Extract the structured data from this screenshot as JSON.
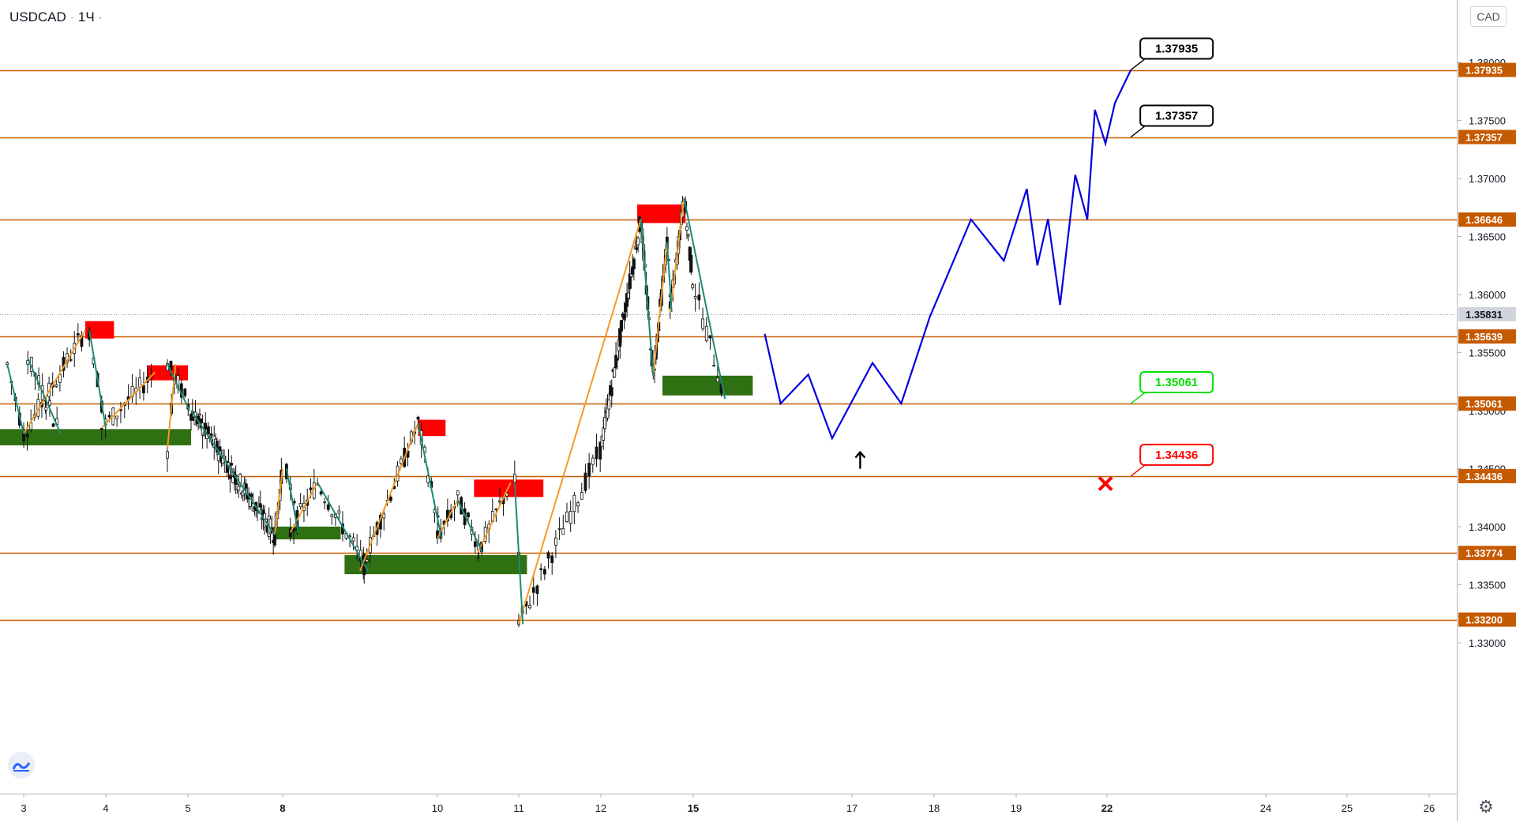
{
  "header": {
    "symbol": "USDCAD",
    "interval": "1Ч",
    "currency": "CAD"
  },
  "icons": {
    "settings": "gear-icon",
    "logo": "tradingview-logo-icon"
  },
  "colors": {
    "level": "#c55a00",
    "projection": "#0000e0",
    "supply": "#ff0000",
    "demand": "#2e7012",
    "up_wave": "#f59a23",
    "down_wave": "#1b8a7a",
    "candle": "#111111",
    "target_up": "#00e000",
    "target_down": "#ff0000"
  },
  "chart_data": {
    "type": "line",
    "title": "",
    "xlabel": "",
    "ylabel": "",
    "y_axis_ticks": [
      "1.33000",
      "1.33500",
      "1.34000",
      "1.34500",
      "1.35000",
      "1.35500",
      "1.36000",
      "1.36500",
      "1.37000",
      "1.37500",
      "1.38000"
    ],
    "ylim": [
      1.3285,
      1.3835
    ],
    "x_axis_ticks": [
      {
        "label": "3",
        "day": 3,
        "bold": false
      },
      {
        "label": "4",
        "day": 4,
        "bold": false
      },
      {
        "label": "5",
        "day": 5,
        "bold": false
      },
      {
        "label": "8",
        "day": 8,
        "bold": true
      },
      {
        "label": "10",
        "day": 10,
        "bold": false
      },
      {
        "label": "11",
        "day": 11,
        "bold": false
      },
      {
        "label": "12",
        "day": 12,
        "bold": false
      },
      {
        "label": "15",
        "day": 15,
        "bold": true
      },
      {
        "label": "17",
        "day": 17,
        "bold": false
      },
      {
        "label": "18",
        "day": 18,
        "bold": false
      },
      {
        "label": "19",
        "day": 19,
        "bold": false
      },
      {
        "label": "22",
        "day": 22,
        "bold": true
      },
      {
        "label": "24",
        "day": 24,
        "bold": false
      },
      {
        "label": "25",
        "day": 25,
        "bold": false
      },
      {
        "label": "26",
        "day": 26,
        "bold": false
      }
    ],
    "levels": [
      {
        "label": "1.37935",
        "value": 1.37935
      },
      {
        "label": "1.37357",
        "value": 1.37357
      },
      {
        "label": "1.36646",
        "value": 1.36646
      },
      {
        "label": "1.35639",
        "value": 1.35639
      },
      {
        "label": "1.35061",
        "value": 1.35061
      },
      {
        "label": "1.34436",
        "value": 1.34436
      },
      {
        "label": "1.33774",
        "value": 1.33774
      },
      {
        "label": "1.33200",
        "value": 1.332
      }
    ],
    "last_price": {
      "label": "1.35831",
      "value": 1.35831
    },
    "supply_zones": [
      {
        "x0": 3.75,
        "x1": 4.1,
        "y0": 1.35621,
        "y1": 1.35771
      },
      {
        "x0": 4.5,
        "x1": 5.0,
        "y0": 1.35261,
        "y1": 1.35391
      },
      {
        "x0": 9.75,
        "x1": 10.1,
        "y0": 1.34781,
        "y1": 1.34921
      },
      {
        "x0": 10.45,
        "x1": 11.3,
        "y0": 1.34256,
        "y1": 1.34406
      },
      {
        "x0": 13.18,
        "x1": 14.75,
        "y0": 1.36616,
        "y1": 1.36776
      }
    ],
    "demand_zones": [
      {
        "x0": 2.7,
        "x1": 5.1,
        "y0": 1.34701,
        "y1": 1.34841
      },
      {
        "x0": 7.7,
        "x1": 8.75,
        "y0": 1.33891,
        "y1": 1.34001
      },
      {
        "x0": 8.8,
        "x1": 11.1,
        "y0": 1.33591,
        "y1": 1.33756
      },
      {
        "x0": 14.0,
        "x1": 15.75,
        "y0": 1.35131,
        "y1": 1.35301
      }
    ],
    "up_wave_segments": [
      [
        [
          3.0,
          1.34801
        ],
        [
          3.75,
          1.35691
        ]
      ],
      [
        [
          3.95,
          1.34851
        ],
        [
          4.6,
          1.35331
        ]
      ],
      [
        [
          4.75,
          1.34671
        ],
        [
          4.85,
          1.35401
        ]
      ],
      [
        [
          7.75,
          1.33931
        ],
        [
          8.0,
          1.34501
        ]
      ],
      [
        [
          8.1,
          1.33951
        ],
        [
          8.45,
          1.34381
        ]
      ],
      [
        [
          9.0,
          1.33621
        ],
        [
          9.75,
          1.34891
        ]
      ],
      [
        [
          10.0,
          1.33901
        ],
        [
          10.25,
          1.34231
        ]
      ],
      [
        [
          10.5,
          1.33781
        ],
        [
          10.9,
          1.34381
        ]
      ],
      [
        [
          11.0,
          1.33161
        ],
        [
          13.3,
          1.36651
        ]
      ],
      [
        [
          13.7,
          1.35301
        ],
        [
          14.15,
          1.36451
        ]
      ],
      [
        [
          14.25,
          1.35851
        ],
        [
          14.7,
          1.36831
        ]
      ]
    ],
    "down_wave_segments": [
      [
        [
          2.8,
          1.35401
        ],
        [
          3.0,
          1.34801
        ]
      ],
      [
        [
          3.05,
          1.35451
        ],
        [
          3.45,
          1.34801
        ]
      ],
      [
        [
          3.8,
          1.35691
        ],
        [
          4.0,
          1.34851
        ]
      ],
      [
        [
          4.75,
          1.35401
        ],
        [
          5.05,
          1.35001
        ]
      ],
      [
        [
          5.1,
          1.35001
        ],
        [
          7.75,
          1.33931
        ]
      ],
      [
        [
          8.05,
          1.34501
        ],
        [
          8.2,
          1.33951
        ]
      ],
      [
        [
          8.45,
          1.34381
        ],
        [
          9.1,
          1.33621
        ]
      ],
      [
        [
          9.75,
          1.34891
        ],
        [
          10.05,
          1.33901
        ]
      ],
      [
        [
          10.25,
          1.34231
        ],
        [
          10.55,
          1.33781
        ]
      ],
      [
        [
          10.95,
          1.34381
        ],
        [
          11.05,
          1.33161
        ]
      ],
      [
        [
          13.3,
          1.36651
        ],
        [
          13.7,
          1.35301
        ]
      ],
      [
        [
          14.15,
          1.36451
        ],
        [
          14.3,
          1.35851
        ]
      ],
      [
        [
          14.7,
          1.36831
        ],
        [
          15.4,
          1.35101
        ]
      ]
    ],
    "projection": {
      "name": "",
      "x": [
        15.9,
        16.1,
        16.45,
        16.75,
        17.25,
        17.6,
        17.95,
        18.45,
        18.85,
        19.35,
        19.7,
        20.05,
        20.45,
        20.95,
        21.35,
        21.6,
        21.95,
        22.1,
        22.3
      ],
      "y": [
        1.35661,
        1.35061,
        1.35311,
        1.34761,
        1.35411,
        1.35061,
        1.35811,
        1.36646,
        1.36291,
        1.36911,
        1.36251,
        1.36651,
        1.35911,
        1.37031,
        1.36646,
        1.37591,
        1.37301,
        1.37651,
        1.37935
      ]
    },
    "callouts": [
      {
        "label": "1.37935",
        "value": 1.37935,
        "x": 22.3,
        "kind": "target",
        "offset": -28
      },
      {
        "label": "1.37357",
        "value": 1.37357,
        "x": 22.3,
        "kind": "target",
        "offset": -28
      },
      {
        "label": "1.35061",
        "value": 1.35061,
        "x": 22.3,
        "kind": "entry",
        "offset": -28
      },
      {
        "label": "1.34436",
        "value": 1.34436,
        "x": 22.3,
        "kind": "stop",
        "offset": -28
      }
    ],
    "entry_arrow": {
      "x": 17.1,
      "y": 1.34581
    },
    "stop_marker": {
      "x": 21.95,
      "y": 1.34371
    },
    "grid": false,
    "legend": "none"
  }
}
